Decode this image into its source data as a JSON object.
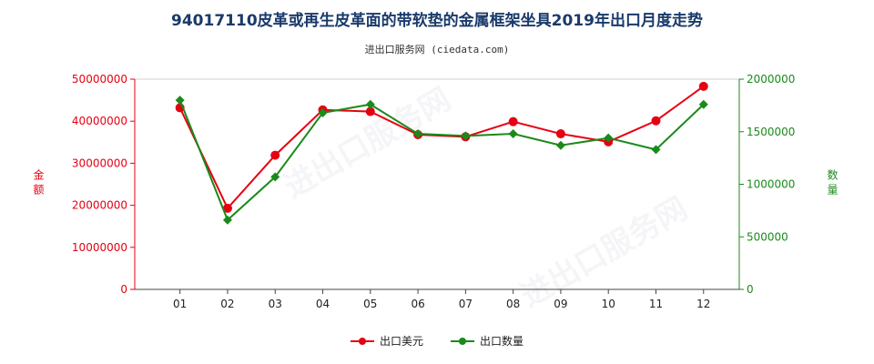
{
  "title": "94017110皮革或再生皮革面的带软垫的金属框架坐具2019年出口月度走势",
  "subtitle": "进出口服务网 (ciedata.com)",
  "watermark": "进出口服务网",
  "chart_data": {
    "type": "line",
    "categories": [
      "01",
      "02",
      "03",
      "04",
      "05",
      "06",
      "07",
      "08",
      "09",
      "10",
      "11",
      "12"
    ],
    "ylabel_left": "金额",
    "ylabel_right": "数量",
    "ylim_left": [
      0,
      50000000
    ],
    "ylim_right": [
      0,
      2000000
    ],
    "yticks_left": [
      "0",
      "10000000",
      "20000000",
      "30000000",
      "40000000",
      "50000000"
    ],
    "yticks_right": [
      "0",
      "500000",
      "1000000",
      "1500000",
      "2000000"
    ],
    "series": [
      {
        "name": "出口美元",
        "axis": "left",
        "color": "#e60012",
        "values": [
          43200000,
          19300000,
          31900000,
          42700000,
          42300000,
          36800000,
          36300000,
          39900000,
          37000000,
          35100000,
          40100000,
          48300000
        ]
      },
      {
        "name": "出口数量",
        "axis": "right",
        "color": "#1a8a1a",
        "values": [
          1800000,
          660000,
          1070000,
          1680000,
          1760000,
          1480000,
          1460000,
          1480000,
          1370000,
          1440000,
          1330000,
          1760000
        ]
      }
    ],
    "grid": false,
    "legend": "bottom-center"
  }
}
